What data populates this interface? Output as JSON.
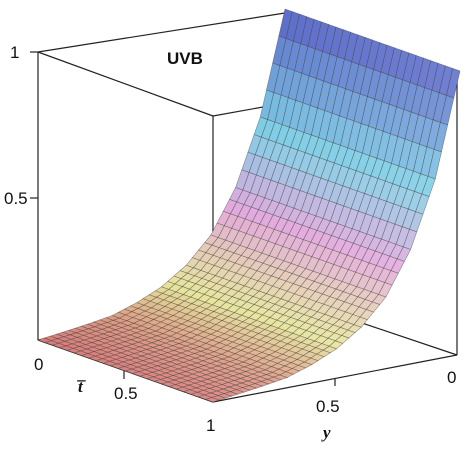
{
  "chart_data": {
    "type": "surface",
    "title": "UVB",
    "axes": {
      "x": {
        "label": "t̅",
        "ticks": [
          "0",
          "0.5",
          "1"
        ],
        "range": [
          0,
          1
        ]
      },
      "y": {
        "label": "y",
        "ticks": [
          "1",
          "0.5",
          "0"
        ],
        "range": [
          0,
          1
        ]
      },
      "z": {
        "label": "",
        "ticks": [
          "0.5",
          "1"
        ],
        "range": [
          0,
          1
        ]
      }
    },
    "surface": {
      "description_values": "z as function of y (constant along t̅); exponential decay from z=1 at y=0 to z=0 at y=1",
      "y": [
        0,
        0.1,
        0.2,
        0.3,
        0.4,
        0.5,
        0.6,
        0.7,
        0.8,
        0.9,
        1.0
      ],
      "z": [
        1.0,
        0.64,
        0.41,
        0.26,
        0.17,
        0.11,
        0.07,
        0.04,
        0.025,
        0.012,
        0.0
      ]
    },
    "colors": {
      "high": "#5a63c8",
      "upper": "#7fd0e6",
      "mid": "#e2a8dc",
      "lower": "#e6e59a",
      "low": "#d87a78"
    }
  }
}
